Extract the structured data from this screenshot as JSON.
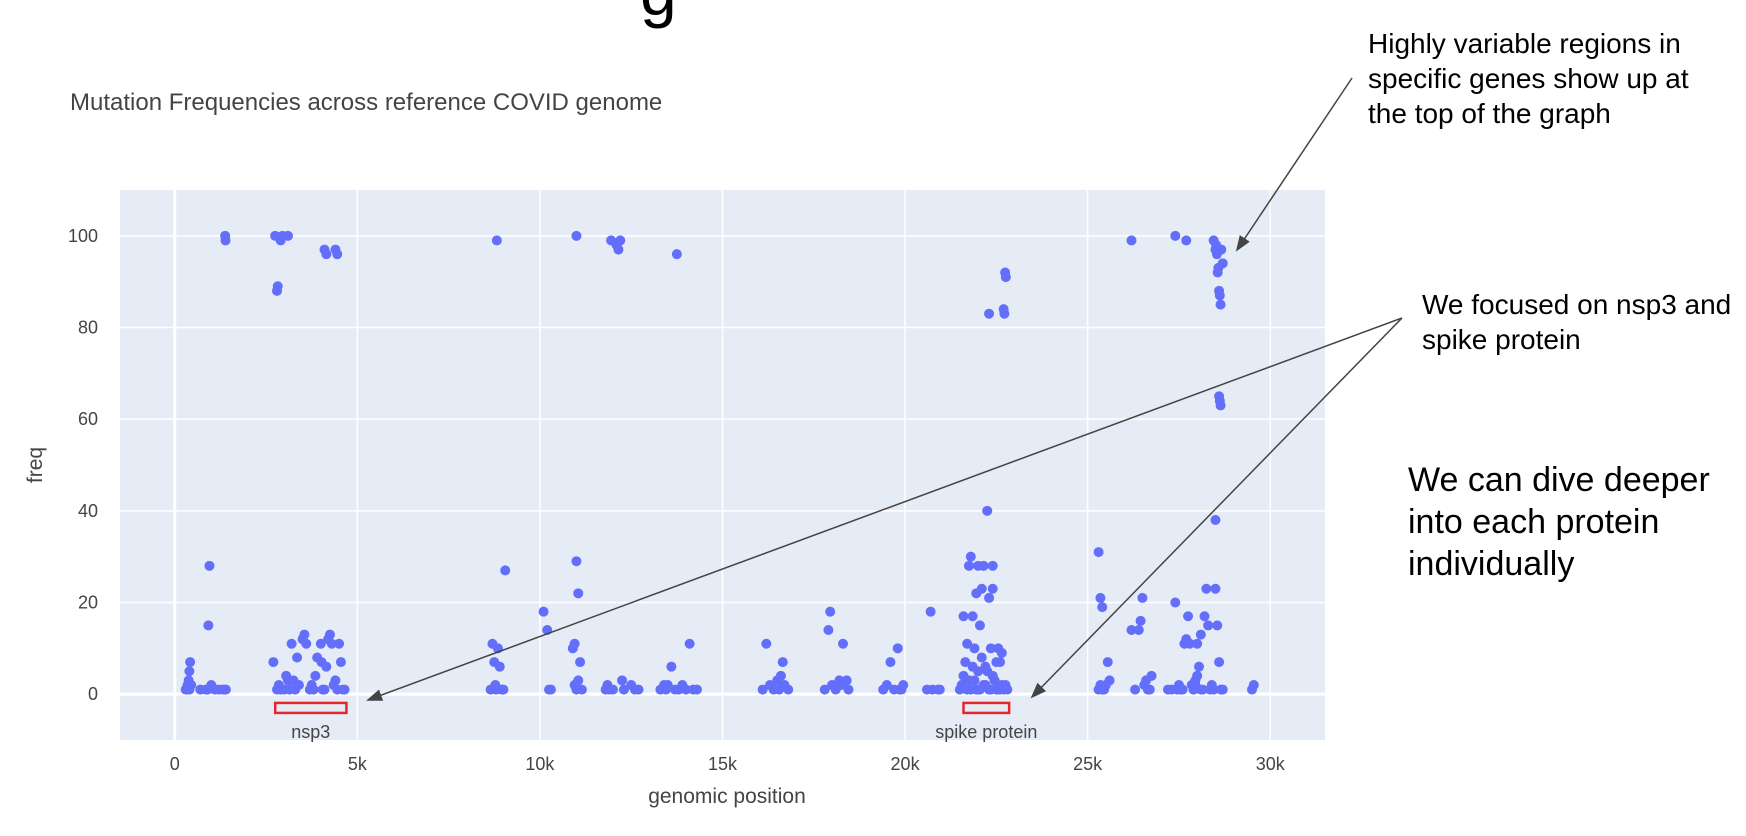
{
  "slide": {
    "heading_fragment": "g"
  },
  "annotations": {
    "top_right": "Highly variable regions in specific genes show up at the top of the graph",
    "focus": "We focused on nsp3 and spike protein",
    "dive": "We can dive deeper into each protein individually"
  },
  "chart_data": {
    "type": "scatter",
    "title": "Mutation Frequencies across reference COVID genome",
    "xlabel": "genomic position",
    "ylabel": "freq",
    "xlim": [
      -1500,
      31500
    ],
    "ylim": [
      -10,
      110
    ],
    "xticks": [
      0,
      5000,
      10000,
      15000,
      20000,
      25000,
      30000
    ],
    "xtick_labels": [
      "0",
      "5k",
      "10k",
      "15k",
      "20k",
      "25k",
      "30k"
    ],
    "yticks": [
      0,
      20,
      40,
      60,
      80,
      100
    ],
    "ytick_labels": [
      "0",
      "20",
      "40",
      "60",
      "80",
      "100"
    ],
    "grid": true,
    "colors": {
      "marker": "#636efa",
      "plot_bg": "#e5ecf6",
      "region_box": "#e8262a",
      "text": "#444444"
    },
    "regions": [
      {
        "label": "nsp3",
        "x0": 2750,
        "x1": 4700,
        "y": -3
      },
      {
        "label": "spike protein",
        "x0": 21600,
        "x1": 22850,
        "y": -3
      }
    ],
    "points": [
      [
        300,
        1
      ],
      [
        350,
        2
      ],
      [
        380,
        3
      ],
      [
        400,
        5
      ],
      [
        420,
        7
      ],
      [
        330,
        1
      ],
      [
        450,
        2
      ],
      [
        400,
        1
      ],
      [
        700,
        1
      ],
      [
        900,
        1
      ],
      [
        1000,
        2
      ],
      [
        1100,
        1
      ],
      [
        1200,
        1
      ],
      [
        1300,
        1
      ],
      [
        1350,
        1
      ],
      [
        1400,
        1
      ],
      [
        950,
        28
      ],
      [
        920,
        15
      ],
      [
        850,
        1
      ],
      [
        1380,
        100
      ],
      [
        1390,
        99
      ],
      [
        2750,
        100
      ],
      [
        2800,
        88
      ],
      [
        2820,
        89
      ],
      [
        2900,
        99
      ],
      [
        2950,
        100
      ],
      [
        3100,
        100
      ],
      [
        4100,
        97
      ],
      [
        4150,
        96
      ],
      [
        4400,
        97
      ],
      [
        4450,
        96
      ],
      [
        2800,
        1
      ],
      [
        2850,
        2
      ],
      [
        2900,
        1
      ],
      [
        3000,
        1
      ],
      [
        3100,
        3
      ],
      [
        3150,
        1
      ],
      [
        3200,
        11
      ],
      [
        3300,
        1
      ],
      [
        3400,
        2
      ],
      [
        3500,
        12
      ],
      [
        3550,
        13
      ],
      [
        3600,
        11
      ],
      [
        3700,
        1
      ],
      [
        3750,
        2
      ],
      [
        3800,
        1
      ],
      [
        3900,
        8
      ],
      [
        4000,
        11
      ],
      [
        4050,
        1
      ],
      [
        4100,
        1
      ],
      [
        4150,
        6
      ],
      [
        4200,
        12
      ],
      [
        4250,
        13
      ],
      [
        4300,
        11
      ],
      [
        4350,
        2
      ],
      [
        4400,
        3
      ],
      [
        4450,
        1
      ],
      [
        4500,
        11
      ],
      [
        4550,
        7
      ],
      [
        4600,
        1
      ],
      [
        4650,
        1
      ],
      [
        3050,
        4
      ],
      [
        2700,
        7
      ],
      [
        3250,
        3
      ],
      [
        3350,
        8
      ],
      [
        3850,
        4
      ],
      [
        4020,
        7
      ],
      [
        8650,
        1
      ],
      [
        8700,
        11
      ],
      [
        8750,
        7
      ],
      [
        8800,
        1
      ],
      [
        8850,
        10
      ],
      [
        8900,
        6
      ],
      [
        8950,
        1
      ],
      [
        9000,
        1
      ],
      [
        9050,
        27
      ],
      [
        8780,
        2
      ],
      [
        8820,
        99
      ],
      [
        10100,
        18
      ],
      [
        10200,
        14
      ],
      [
        10250,
        1
      ],
      [
        10300,
        1
      ],
      [
        10900,
        10
      ],
      [
        10950,
        11
      ],
      [
        11000,
        29
      ],
      [
        11050,
        22
      ],
      [
        11100,
        7
      ],
      [
        11150,
        1
      ],
      [
        11000,
        1
      ],
      [
        11050,
        3
      ],
      [
        10950,
        2
      ],
      [
        11000,
        100
      ],
      [
        11800,
        1
      ],
      [
        11850,
        2
      ],
      [
        11900,
        1
      ],
      [
        11950,
        99
      ],
      [
        12000,
        1
      ],
      [
        12100,
        98
      ],
      [
        12150,
        97
      ],
      [
        12200,
        99
      ],
      [
        12250,
        3
      ],
      [
        12300,
        1
      ],
      [
        12500,
        2
      ],
      [
        12600,
        1
      ],
      [
        12700,
        1
      ],
      [
        13300,
        1
      ],
      [
        13400,
        2
      ],
      [
        13450,
        1
      ],
      [
        13500,
        2
      ],
      [
        13600,
        6
      ],
      [
        13700,
        1
      ],
      [
        13750,
        96
      ],
      [
        13800,
        1
      ],
      [
        13900,
        2
      ],
      [
        14000,
        1
      ],
      [
        14100,
        11
      ],
      [
        14200,
        1
      ],
      [
        14300,
        1
      ],
      [
        16100,
        1
      ],
      [
        16200,
        11
      ],
      [
        16300,
        2
      ],
      [
        16400,
        1
      ],
      [
        16500,
        3
      ],
      [
        16550,
        1
      ],
      [
        16600,
        4
      ],
      [
        16650,
        7
      ],
      [
        16700,
        2
      ],
      [
        16800,
        1
      ],
      [
        17800,
        1
      ],
      [
        17900,
        14
      ],
      [
        17950,
        18
      ],
      [
        18000,
        2
      ],
      [
        18100,
        1
      ],
      [
        18200,
        3
      ],
      [
        18250,
        2
      ],
      [
        18300,
        11
      ],
      [
        18400,
        3
      ],
      [
        18450,
        1
      ],
      [
        19400,
        1
      ],
      [
        19500,
        2
      ],
      [
        19600,
        7
      ],
      [
        19700,
        1
      ],
      [
        19800,
        10
      ],
      [
        19850,
        1
      ],
      [
        19900,
        1
      ],
      [
        19950,
        2
      ],
      [
        20600,
        1
      ],
      [
        20700,
        18
      ],
      [
        20750,
        1
      ],
      [
        20900,
        1
      ],
      [
        20950,
        1
      ],
      [
        21500,
        1
      ],
      [
        21550,
        2
      ],
      [
        21600,
        4
      ],
      [
        21650,
        7
      ],
      [
        21700,
        11
      ],
      [
        21750,
        28
      ],
      [
        21800,
        30
      ],
      [
        21850,
        17
      ],
      [
        21900,
        10
      ],
      [
        21950,
        22
      ],
      [
        22000,
        1
      ],
      [
        22050,
        15
      ],
      [
        22100,
        23
      ],
      [
        22150,
        28
      ],
      [
        22200,
        6
      ],
      [
        22250,
        40
      ],
      [
        22300,
        21
      ],
      [
        22350,
        10
      ],
      [
        22400,
        28
      ],
      [
        22450,
        3
      ],
      [
        22500,
        1
      ],
      [
        22550,
        10
      ],
      [
        22600,
        7
      ],
      [
        22650,
        9
      ],
      [
        22700,
        1
      ],
      [
        22750,
        2
      ],
      [
        22800,
        1
      ],
      [
        21700,
        1
      ],
      [
        21800,
        1
      ],
      [
        21900,
        3
      ],
      [
        22000,
        5
      ],
      [
        22100,
        8
      ],
      [
        22200,
        2
      ],
      [
        22300,
        1
      ],
      [
        22400,
        4
      ],
      [
        22500,
        7
      ],
      [
        22600,
        1
      ],
      [
        21650,
        2
      ],
      [
        21750,
        3
      ],
      [
        21850,
        6
      ],
      [
        21950,
        1
      ],
      [
        22050,
        1
      ],
      [
        22150,
        2
      ],
      [
        22250,
        5
      ],
      [
        22350,
        1
      ],
      [
        22450,
        3
      ],
      [
        22550,
        1
      ],
      [
        22650,
        2
      ],
      [
        21600,
        17
      ],
      [
        22000,
        28
      ],
      [
        22400,
        23
      ],
      [
        22300,
        83
      ],
      [
        22700,
        84
      ],
      [
        22720,
        83
      ],
      [
        22740,
        92
      ],
      [
        22760,
        91
      ],
      [
        25300,
        31
      ],
      [
        25350,
        21
      ],
      [
        25400,
        19
      ],
      [
        25450,
        1
      ],
      [
        25500,
        2
      ],
      [
        25550,
        7
      ],
      [
        25600,
        3
      ],
      [
        25300,
        1
      ],
      [
        25350,
        2
      ],
      [
        25400,
        1
      ],
      [
        26200,
        14
      ],
      [
        26300,
        1
      ],
      [
        26400,
        14
      ],
      [
        26450,
        16
      ],
      [
        26500,
        21
      ],
      [
        26550,
        2
      ],
      [
        26600,
        3
      ],
      [
        26650,
        1
      ],
      [
        26700,
        1
      ],
      [
        26750,
        4
      ],
      [
        26200,
        99
      ],
      [
        27200,
        1
      ],
      [
        27300,
        1
      ],
      [
        27400,
        20
      ],
      [
        27450,
        1
      ],
      [
        27500,
        2
      ],
      [
        27550,
        1
      ],
      [
        27600,
        1
      ],
      [
        27650,
        11
      ],
      [
        27700,
        12
      ],
      [
        27750,
        17
      ],
      [
        27800,
        11
      ],
      [
        27850,
        2
      ],
      [
        27900,
        1
      ],
      [
        27950,
        3
      ],
      [
        28000,
        11
      ],
      [
        28050,
        6
      ],
      [
        28100,
        13
      ],
      [
        28150,
        1
      ],
      [
        28200,
        17
      ],
      [
        28250,
        23
      ],
      [
        28300,
        15
      ],
      [
        28350,
        1
      ],
      [
        28400,
        2
      ],
      [
        28450,
        1
      ],
      [
        28500,
        23
      ],
      [
        28550,
        15
      ],
      [
        28600,
        7
      ],
      [
        28650,
        1
      ],
      [
        28700,
        1
      ],
      [
        27900,
        1
      ],
      [
        27950,
        2
      ],
      [
        28000,
        4
      ],
      [
        28100,
        1
      ],
      [
        27400,
        100
      ],
      [
        27700,
        99
      ],
      [
        28450,
        99
      ],
      [
        28500,
        97
      ],
      [
        28520,
        98
      ],
      [
        28540,
        96
      ],
      [
        28560,
        92
      ],
      [
        28580,
        93
      ],
      [
        28600,
        88
      ],
      [
        28620,
        87
      ],
      [
        28640,
        85
      ],
      [
        28660,
        97
      ],
      [
        28700,
        94
      ],
      [
        28600,
        65
      ],
      [
        28620,
        64
      ],
      [
        28640,
        63
      ],
      [
        28500,
        38
      ],
      [
        29500,
        1
      ],
      [
        29550,
        2
      ]
    ]
  }
}
